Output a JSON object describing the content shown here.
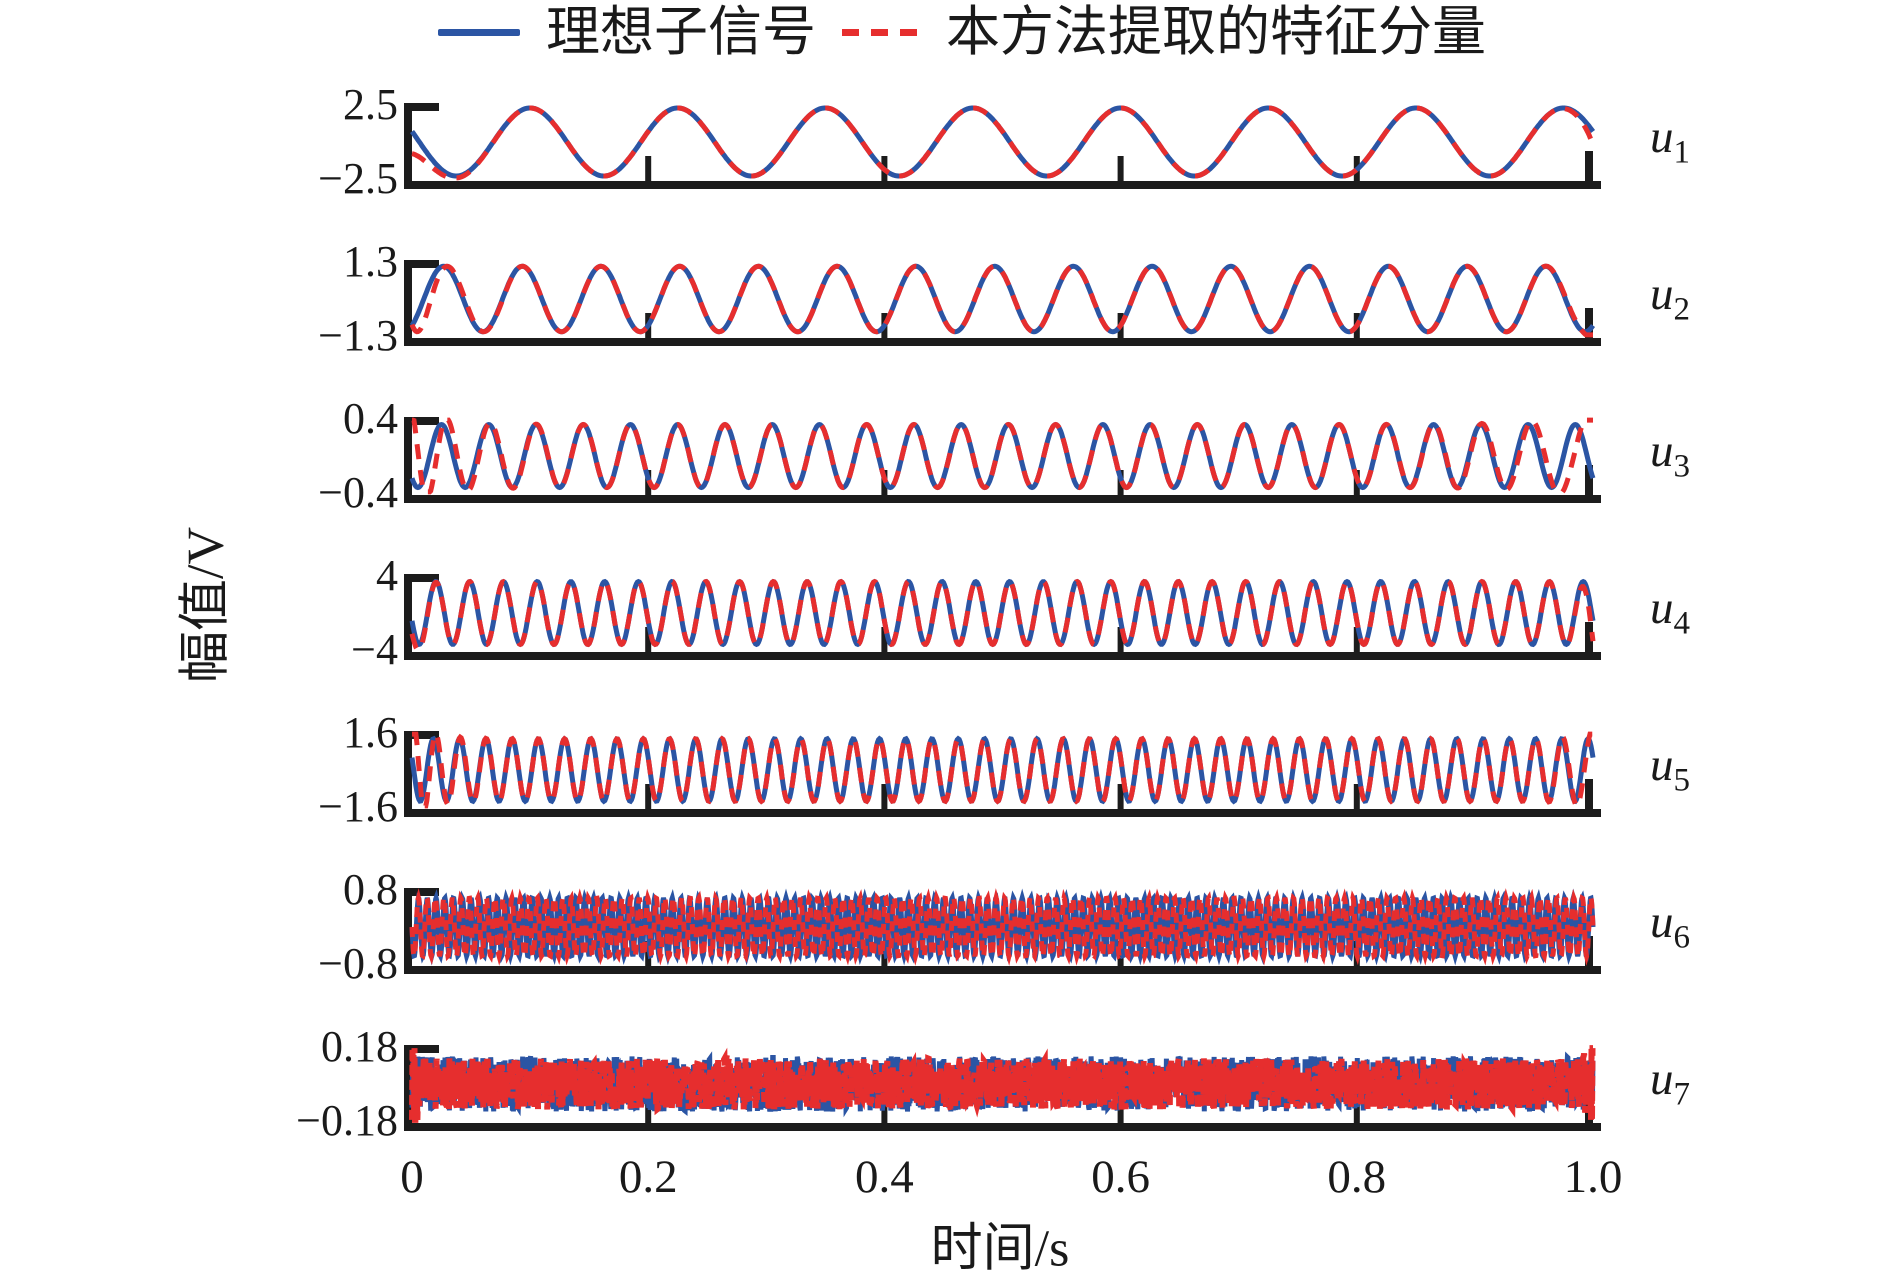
{
  "legend": {
    "ideal_label": "理想子信号",
    "extracted_label": "本方法提取的特征分量"
  },
  "colors": {
    "ideal": "#2b55a4",
    "extracted": "#e62e2e",
    "axis": "#1c1c1c",
    "background": "#ffffff"
  },
  "axes": {
    "x_label": "时间/s",
    "y_label": "幅值/V",
    "x_tick_labels": [
      "0",
      "0.2",
      "0.4",
      "0.6",
      "0.8",
      "1.0"
    ]
  },
  "chart_data": {
    "type": "line",
    "title": "",
    "xlabel": "时间/s",
    "ylabel": "幅值/V",
    "x_range": [
      0,
      1
    ],
    "x_ticks": [
      0,
      0.2,
      0.4,
      0.6,
      0.8,
      1.0
    ],
    "grid": false,
    "legend_position": "top-center",
    "series_legend": [
      {
        "name": "理想子信号",
        "style": "solid",
        "color": "#2b55a4"
      },
      {
        "name": "本方法提取的特征分量",
        "style": "dashed",
        "color": "#e62e2e"
      }
    ],
    "subplots": [
      {
        "label": "u",
        "sub": "1",
        "ytick_top": "2.5",
        "ytick_bottom": "−2.5",
        "ylim": 2.5,
        "type": "sine",
        "freq": 8,
        "amp": 2.3,
        "phase": 0.4,
        "red": {
          "off_s": -1.5,
          "tau_s": 0.016,
          "off_e": -0.9,
          "tau_e": 0.008
        }
      },
      {
        "label": "u",
        "sub": "2",
        "ytick_top": "1.3",
        "ytick_bottom": "−1.3",
        "ylim": 1.3,
        "type": "sine",
        "freq": 15,
        "amp": 1.15,
        "phase": -0.8,
        "red": {
          "lag_s": 1.3,
          "tau_s": 0.02,
          "boost_e": 0.25,
          "lag_e": -0.6,
          "tau_e": 0.01
        }
      },
      {
        "label": "u",
        "sub": "3",
        "ytick_top": "0.4",
        "ytick_bottom": "−0.4",
        "ylim": 0.4,
        "type": "sine",
        "freq": 25,
        "amp": 0.34,
        "phase": 0.75,
        "red": {
          "lag_s": 2.0,
          "tau_s": 0.028,
          "boost_s": 0.55,
          "lag_e": -2.2,
          "tau_e": 0.035,
          "boost_e": 0.5
        }
      },
      {
        "label": "u",
        "sub": "4",
        "ytick_top": "4",
        "ytick_bottom": "−4",
        "ylim": 4.0,
        "type": "sine",
        "freq": 35,
        "amp": 3.4,
        "phase": 0.58,
        "red": {
          "off_s": -1.4,
          "tau_s": 0.007,
          "off_e": -2.2,
          "tau_e": 0.006
        }
      },
      {
        "label": "u",
        "sub": "5",
        "ytick_top": "1.6",
        "ytick_bottom": "−1.6",
        "ylim": 1.6,
        "type": "sine",
        "freq": 45,
        "amp": 1.35,
        "phase": 0.37,
        "red": {
          "lag_s": 1.8,
          "tau_s": 0.018,
          "boost_s": 0.5,
          "lag_e": -1.2,
          "tau_e": 0.012,
          "boost_e": 0.45
        }
      },
      {
        "label": "u",
        "sub": "6",
        "ytick_top": "0.8",
        "ytick_bottom": "−0.8",
        "ylim": 0.8,
        "type": "sine",
        "freq": 135,
        "freq_red": 139,
        "amp": 0.63,
        "phase": 0.5,
        "red": {}
      },
      {
        "label": "u",
        "sub": "7",
        "ytick_top": "0.18",
        "ytick_bottom": "−0.18",
        "ylim": 0.18,
        "type": "noise",
        "freq": 0,
        "amp": 0.135,
        "amp_red": 0.125,
        "phase": 0,
        "red": {
          "edge_boost": 3.0,
          "tau_edge": 0.003
        }
      }
    ]
  }
}
